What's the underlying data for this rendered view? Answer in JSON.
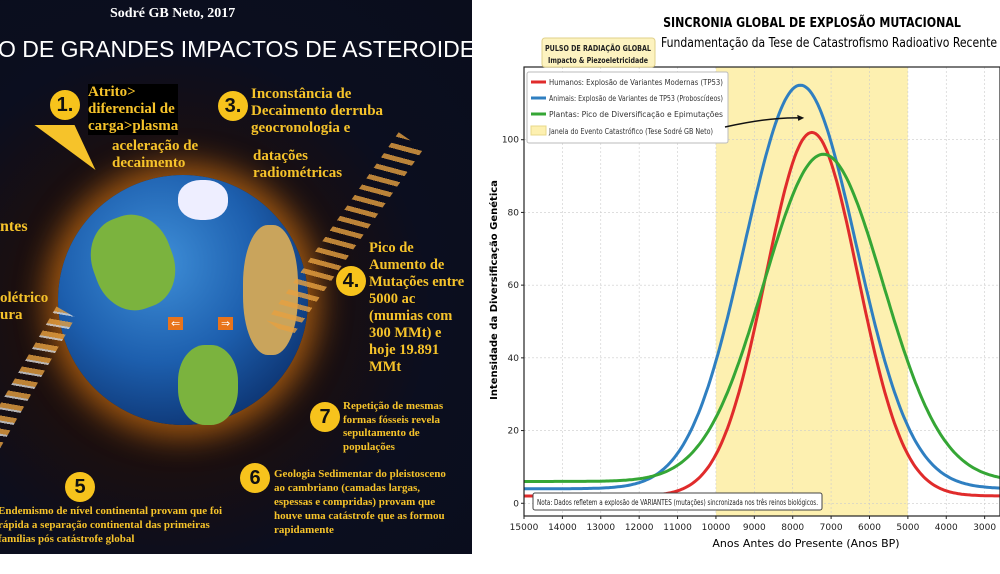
{
  "infographic": {
    "author": "Sodré GB Neto, 2017",
    "title": "O DE GRANDES IMPACTOS DE ASTEROIDES",
    "items": [
      {
        "number": "1.",
        "lines": [
          "Atrito>",
          "diferencial de",
          "carga>plasma"
        ],
        "extra": [
          "aceleração de",
          "decaimento"
        ]
      },
      {
        "number": "3.",
        "lines": [
          "Inconstância de",
          "Decaimento derruba",
          "geocronologia e"
        ],
        "extra": [
          "datações",
          "radiométricas"
        ]
      },
      {
        "number": "4.",
        "lines": [
          "Pico de",
          "Aumento de",
          "Mutações entre",
          "5000 ac",
          "(mumias com",
          "300 MMt) e",
          "hoje 19.891",
          "MMt"
        ]
      },
      {
        "number": "7",
        "lines": [
          "Repetição de mesmas",
          "formas fósseis revela",
          "sepultamento de",
          "populações"
        ]
      },
      {
        "number": "6",
        "lines": [
          "Geologia Sedimentar do pleistosceno",
          "ao cambriano (camadas largas,",
          "espessas e compridas) provam que",
          "houve uma catástrofe que as formou",
          "rapidamente"
        ]
      },
      {
        "number": "5",
        "lines": [
          "Endemismo de nível continental provam que  foi",
          "rápida a separação continental das primeiras",
          "famílias pós catástrofe global"
        ]
      }
    ],
    "fragments": [
      "ntes",
      "olétrico",
      "ura"
    ]
  },
  "chart_data": {
    "type": "line",
    "title": "SINCRONIA GLOBAL DE EXPLOSÃO MUTACIONAL",
    "subtitle": "Fundamentação da Tese de Catastrofismo Radioativo Recente",
    "xlabel": "Anos Antes do Presente (Anos BP)",
    "ylabel": "Intensidade da Diversificação Genética",
    "xlim": [
      15000,
      2600
    ],
    "ylim": [
      -3.5,
      120
    ],
    "x_reversed": true,
    "grid": true,
    "legend_placement": "top-left",
    "xticks": [
      "15000",
      "14000",
      "13000",
      "12000",
      "11000",
      "10000",
      "9000",
      "8000",
      "7000",
      "6000",
      "5000",
      "4000",
      "3000"
    ],
    "yticks": [
      "0",
      "20",
      "40",
      "60",
      "80",
      "100"
    ],
    "series": [
      {
        "name": "Humanos: Explosão de Variantes Modernas (TP53)",
        "color": "#e02b2b",
        "model": "gaussian",
        "baseline": 2,
        "peak": 102,
        "peak_year": 7500,
        "sigma": 1200
      },
      {
        "name": "Animais: Explosão de Variantes de TP53 (Proboscídeos)",
        "color": "#2f7fc1",
        "model": "gaussian",
        "baseline": 4,
        "peak": 115,
        "peak_year": 7800,
        "sigma": 1450
      },
      {
        "name": "Plantas: Pico de Diversificação e Epimutações",
        "color": "#35a635",
        "model": "gaussian",
        "baseline": 6,
        "peak": 96,
        "peak_year": 7200,
        "sigma": 1550
      }
    ],
    "span": {
      "name": "Janela do Evento Catastrófico (Tese Sodré GB Neto)",
      "from": 10000,
      "to": 5000,
      "color": "#fdf0b0"
    },
    "annotation": {
      "lines": [
        "PULSO DE RADIAÇÃO GLOBAL",
        "Impacto & Piezoeletricidade"
      ],
      "arrow_target_year": 7700,
      "arrow_target_value": 106
    },
    "note": "Nota: Dados refletem a explosão de VARIANTES (mutações) sincronizada nos três reinos biológicos."
  }
}
